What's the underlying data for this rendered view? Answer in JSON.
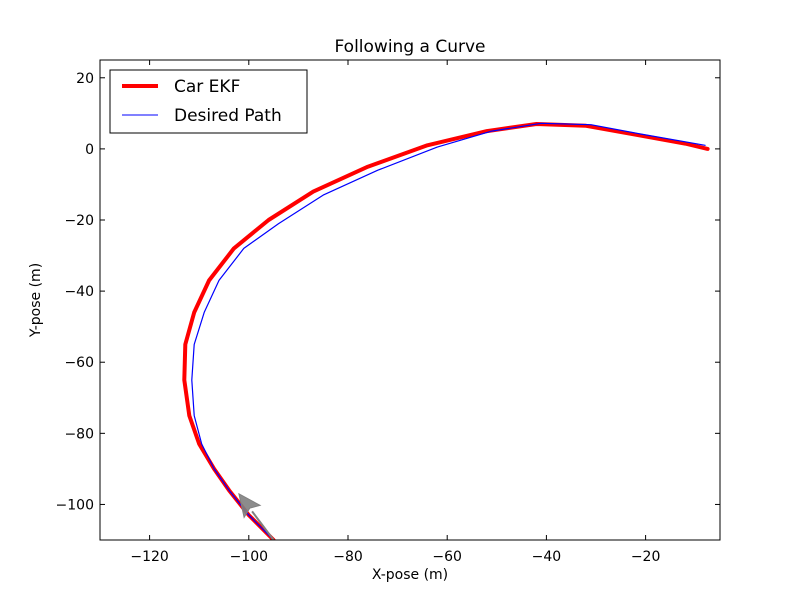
{
  "chart_data": {
    "type": "line",
    "title": "Following a Curve",
    "xlabel": "X-pose (m)",
    "ylabel": "Y-pose (m)",
    "xlim": [
      -130,
      -5
    ],
    "ylim": [
      -110,
      25
    ],
    "xticks": [
      -120,
      -100,
      -80,
      -60,
      -40,
      -20
    ],
    "yticks": [
      20,
      0,
      -20,
      -40,
      -60,
      -80,
      -100
    ],
    "xtick_labels": [
      "−120",
      "−100",
      "−80",
      "−60",
      "−40",
      "−20"
    ],
    "ytick_labels": [
      "20",
      "0",
      "−20",
      "−40",
      "−60",
      "−80",
      "−100"
    ],
    "grid": false,
    "legend_position": "top-left",
    "series": [
      {
        "name": "Car EKF",
        "color": "#ff0000",
        "x": [
          -95,
          -100,
          -104,
          -107,
          -110,
          -112,
          -113,
          -112.8,
          -111,
          -108,
          -103,
          -96,
          -87,
          -76,
          -64,
          -52,
          -42,
          -32,
          -22,
          -12,
          -7.5
        ],
        "y": [
          -110,
          -103,
          -96,
          -90,
          -83,
          -75,
          -65,
          -55,
          -46,
          -37,
          -28,
          -20,
          -12,
          -5,
          1,
          5,
          7,
          6.5,
          4,
          1.5,
          0
        ]
      },
      {
        "name": "Desired Path",
        "color": "#0000ff",
        "x": [
          -95,
          -100,
          -104,
          -107,
          -109.5,
          -111,
          -111.5,
          -111,
          -109,
          -106,
          -101,
          -94,
          -85,
          -74,
          -62,
          -51,
          -41,
          -31,
          -21,
          -12,
          -8
        ],
        "y": [
          -110,
          -103,
          -96,
          -90,
          -83,
          -75,
          -65,
          -55,
          -46,
          -37,
          -28,
          -21,
          -13,
          -6,
          0.5,
          5,
          7.2,
          6.8,
          4.2,
          2,
          1
        ]
      }
    ],
    "annotations": [
      {
        "type": "arrow",
        "color": "#808080",
        "x": -102,
        "y": -97,
        "heading_from": [
          -95,
          -110
        ]
      }
    ]
  }
}
